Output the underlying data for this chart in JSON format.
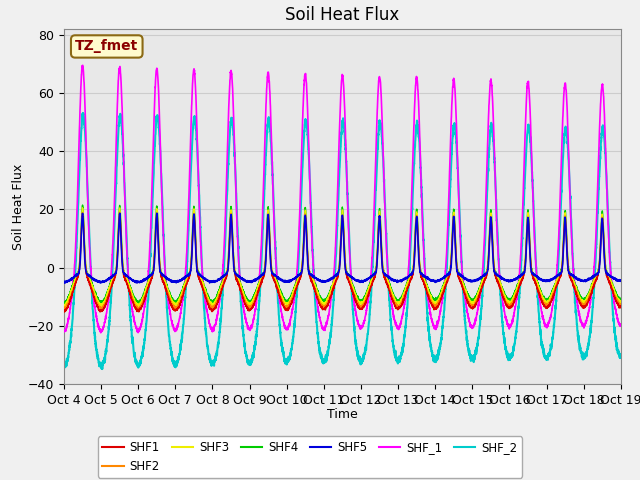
{
  "title": "Soil Heat Flux",
  "xlabel": "Time",
  "ylabel": "Soil Heat Flux",
  "ylim": [
    -40,
    82
  ],
  "xlim": [
    0,
    15
  ],
  "annotation_text": "TZ_fmet",
  "annotation_bg": "#FFFACD",
  "annotation_border": "#8B6914",
  "annotation_text_color": "#8B0000",
  "grid_color": "#cccccc",
  "plot_bg": "#e8e8e8",
  "fig_bg": "#f0f0f0",
  "series": {
    "SHF1": {
      "color": "#dd0000",
      "lw": 1.0
    },
    "SHF2": {
      "color": "#ff8800",
      "lw": 1.0
    },
    "SHF3": {
      "color": "#eeee00",
      "lw": 1.0
    },
    "SHF4": {
      "color": "#00cc00",
      "lw": 1.0
    },
    "SHF5": {
      "color": "#0000dd",
      "lw": 1.2
    },
    "SHF_1": {
      "color": "#ff00ff",
      "lw": 1.2
    },
    "SHF_2": {
      "color": "#00cccc",
      "lw": 1.5
    }
  },
  "x_tick_labels": [
    "Oct 4",
    "Oct 5",
    "Oct 6",
    "Oct 7",
    "Oct 8",
    "Oct 9",
    "Oct 10",
    "Oct 11",
    "Oct 12",
    "Oct 13",
    "Oct 14",
    "Oct 15",
    "Oct 16",
    "Oct 17",
    "Oct 18",
    "Oct 19"
  ],
  "yticks": [
    -40,
    -20,
    0,
    20,
    40,
    60,
    80
  ]
}
